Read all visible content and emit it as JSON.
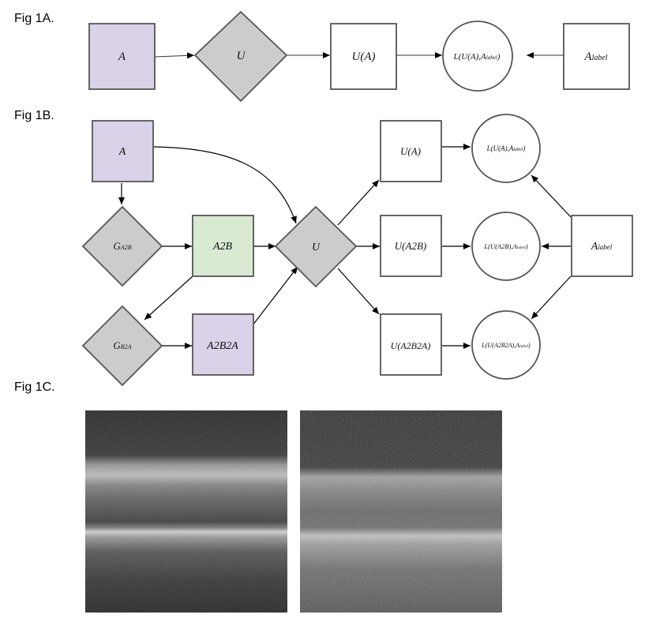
{
  "fig1a": {
    "label": "Fig 1A.",
    "nodes": {
      "a": "A",
      "u": "U",
      "ua": "U(A)",
      "loss": "L(U(A),A",
      "loss_sub": "label",
      "loss_close": ")",
      "alabel": "A",
      "alabel_sub": "label"
    }
  },
  "fig1b": {
    "label": "Fig 1B.",
    "nodes": {
      "a": "A",
      "g_a2b": "G",
      "g_a2b_sub": "A2B",
      "a2b": "A2B",
      "g_b2a": "G",
      "g_b2a_sub": "B2A",
      "a2b2a": "A2B2A",
      "u": "U",
      "ua": "U(A)",
      "ua2b": "U(A2B)",
      "ua2b2a": "U(A2B2A)",
      "loss1": "L(U(A),A",
      "loss2": "L(U(A2B),A",
      "loss3": "L(U(A2B2A),A",
      "loss_sub": "label",
      "loss_close": ")",
      "alabel": "A",
      "alabel_sub": "label"
    }
  },
  "fig1c": {
    "label": "Fig 1C."
  },
  "colors": {
    "purple": "#d9d2e9",
    "green": "#d9ead3",
    "gray": "#cccccc",
    "stroke": "#555555"
  }
}
